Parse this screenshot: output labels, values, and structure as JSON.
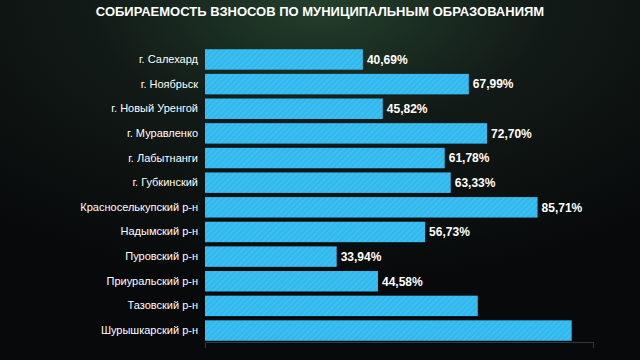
{
  "chart_data": {
    "type": "bar",
    "orientation": "horizontal",
    "title": "СОБИРАЕМОСТЬ ВЗНОСОВ ПО МУНИЦИПАЛЬНЫМ ОБРАЗОВАНИЯМ",
    "categories": [
      "г. Салехард",
      "г. Ноябрьск",
      "г. Новый Уренгой",
      "г. Муравленко",
      "г. Лабытнанги",
      "г. Губкинский",
      "Красноселькупский р-н",
      "Надымский р-н",
      "Пуровский р-н",
      "Приуральский р-н",
      "Тазовский р-н",
      "Шурышкарский р-н"
    ],
    "values": [
      40.69,
      67.99,
      45.82,
      72.7,
      61.78,
      63.33,
      85.71,
      56.73,
      33.94,
      44.58,
      70.3,
      94.5
    ],
    "value_labels": [
      "40,69%",
      "67,99%",
      "45,82%",
      "72,70%",
      "61,78%",
      "63,33%",
      "85,71%",
      "56,73%",
      "33,94%",
      "44,58%",
      null,
      null
    ],
    "data_labels": true,
    "color": "#30b9ee",
    "xlim": [
      0,
      100
    ],
    "xticks": [],
    "tick_labels": "y",
    "grid": false
  }
}
